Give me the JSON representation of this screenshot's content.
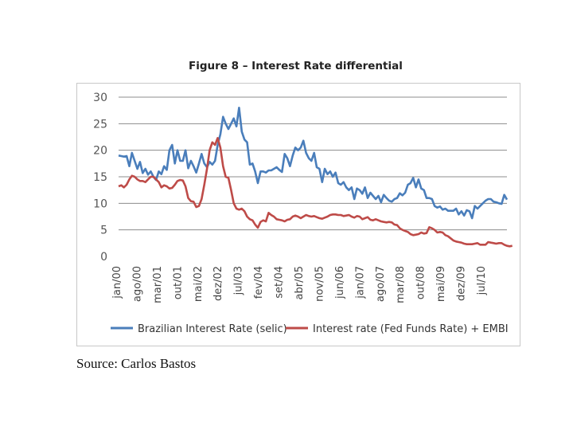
{
  "title": "Figure 8 – Interest Rate differential",
  "source": "Source: Carlos Bastos",
  "colors": {
    "selic": "#4a7ebb",
    "embi": "#be4b48",
    "grid": "#8c8c8c",
    "frame": "#c8c8c8"
  },
  "chart_data": {
    "type": "line",
    "title": "Figure 8 – Interest Rate differential",
    "xlabel": "",
    "ylabel": "",
    "ylim": [
      0,
      30
    ],
    "yticks": [
      0,
      5,
      10,
      15,
      20,
      25,
      30
    ],
    "grid": true,
    "legend_position": "bottom",
    "x_tick_labels": [
      "jan/00",
      "ago/00",
      "mar/01",
      "out/01",
      "mai/02",
      "dez/02",
      "jul/03",
      "fev/04",
      "set/04",
      "abr/05",
      "nov/05",
      "jun/06",
      "jan/07",
      "ago/07",
      "mar/08",
      "out/08",
      "mai/09",
      "dez/09",
      "jul/10"
    ],
    "series": [
      {
        "name": "Brazilian Interest Rate (selic)",
        "values": [
          19.0,
          18.9,
          18.8,
          18.9,
          17.0,
          19.5,
          18.0,
          16.5,
          17.8,
          15.7,
          16.5,
          15.4,
          16.0,
          15.0,
          14.4,
          16.0,
          15.5,
          17.0,
          16.3,
          20.0,
          21.0,
          17.5,
          20.0,
          18.0,
          18.0,
          20.0,
          16.6,
          18.0,
          17.0,
          15.8,
          17.5,
          19.3,
          17.5,
          16.8,
          17.8,
          17.3,
          18.0,
          21.0,
          23.0,
          26.3,
          25.0,
          24.0,
          25.0,
          26.0,
          24.5,
          28.0,
          23.5,
          22.0,
          21.5,
          17.3,
          17.5,
          16.0,
          13.8,
          16.0,
          16.0,
          15.8,
          16.2,
          16.2,
          16.5,
          16.8,
          16.3,
          15.9,
          19.3,
          18.5,
          17.0,
          19.0,
          20.5,
          20.0,
          20.5,
          21.8,
          19.5,
          18.5,
          18.0,
          19.5,
          16.8,
          16.5,
          14.0,
          16.5,
          15.5,
          16.0,
          15.0,
          15.8,
          13.8,
          13.5,
          14.0,
          13.0,
          12.5,
          13.0,
          10.8,
          12.8,
          12.5,
          11.8,
          13.0,
          11.0,
          12.0,
          11.4,
          10.8,
          11.4,
          10.2,
          11.6,
          11.0,
          10.5,
          10.3,
          10.8,
          11.0,
          11.9,
          11.5,
          12.0,
          13.5,
          13.8,
          14.8,
          13.0,
          14.5,
          12.8,
          12.5,
          11.0,
          11.0,
          10.8,
          9.5,
          9.2,
          9.4,
          8.8,
          9.0,
          8.6,
          8.6,
          8.6,
          9.0,
          7.9,
          8.5,
          7.7,
          8.7,
          8.5,
          7.2,
          9.5,
          9.0,
          9.5,
          10.0,
          10.5,
          10.8,
          10.8,
          10.3,
          10.2,
          10.0,
          9.9,
          11.6,
          10.7
        ]
      },
      {
        "name": "Interest rate (Fed Funds Rate) + EMBI",
        "values": [
          13.2,
          13.4,
          13.0,
          13.5,
          14.5,
          15.2,
          15.0,
          14.5,
          14.2,
          14.2,
          14.0,
          14.5,
          15.0,
          15.0,
          14.5,
          14.0,
          13.0,
          13.4,
          13.2,
          12.8,
          12.9,
          13.5,
          14.2,
          14.4,
          14.3,
          13.2,
          11.0,
          10.4,
          10.3,
          9.3,
          9.5,
          10.8,
          13.5,
          16.5,
          20.0,
          21.5,
          21.0,
          22.3,
          20.5,
          17.0,
          15.0,
          14.8,
          12.5,
          10.0,
          9.0,
          8.8,
          9.0,
          8.5,
          7.5,
          7.0,
          6.8,
          6.0,
          5.4,
          6.5,
          6.8,
          6.6,
          8.2,
          7.8,
          7.5,
          7.0,
          6.9,
          6.8,
          6.6,
          6.9,
          7.0,
          7.5,
          7.7,
          7.5,
          7.2,
          7.5,
          7.8,
          7.6,
          7.5,
          7.6,
          7.4,
          7.2,
          7.1,
          7.3,
          7.5,
          7.8,
          7.9,
          7.9,
          7.8,
          7.8,
          7.6,
          7.7,
          7.8,
          7.5,
          7.3,
          7.6,
          7.5,
          7.0,
          7.2,
          7.4,
          6.9,
          6.8,
          7.0,
          6.8,
          6.6,
          6.5,
          6.4,
          6.5,
          6.4,
          6.0,
          5.9,
          5.3,
          5.0,
          4.8,
          4.6,
          4.2,
          4.0,
          4.1,
          4.2,
          4.5,
          4.3,
          4.4,
          5.5,
          5.3,
          5.0,
          4.5,
          4.6,
          4.5,
          4.0,
          3.8,
          3.4,
          3.0,
          2.8,
          2.7,
          2.6,
          2.4,
          2.3,
          2.3,
          2.3,
          2.4,
          2.5,
          2.2,
          2.2,
          2.2,
          2.7,
          2.6,
          2.5,
          2.4,
          2.5,
          2.5,
          2.2,
          2.0,
          1.9,
          2.0
        ]
      }
    ]
  }
}
